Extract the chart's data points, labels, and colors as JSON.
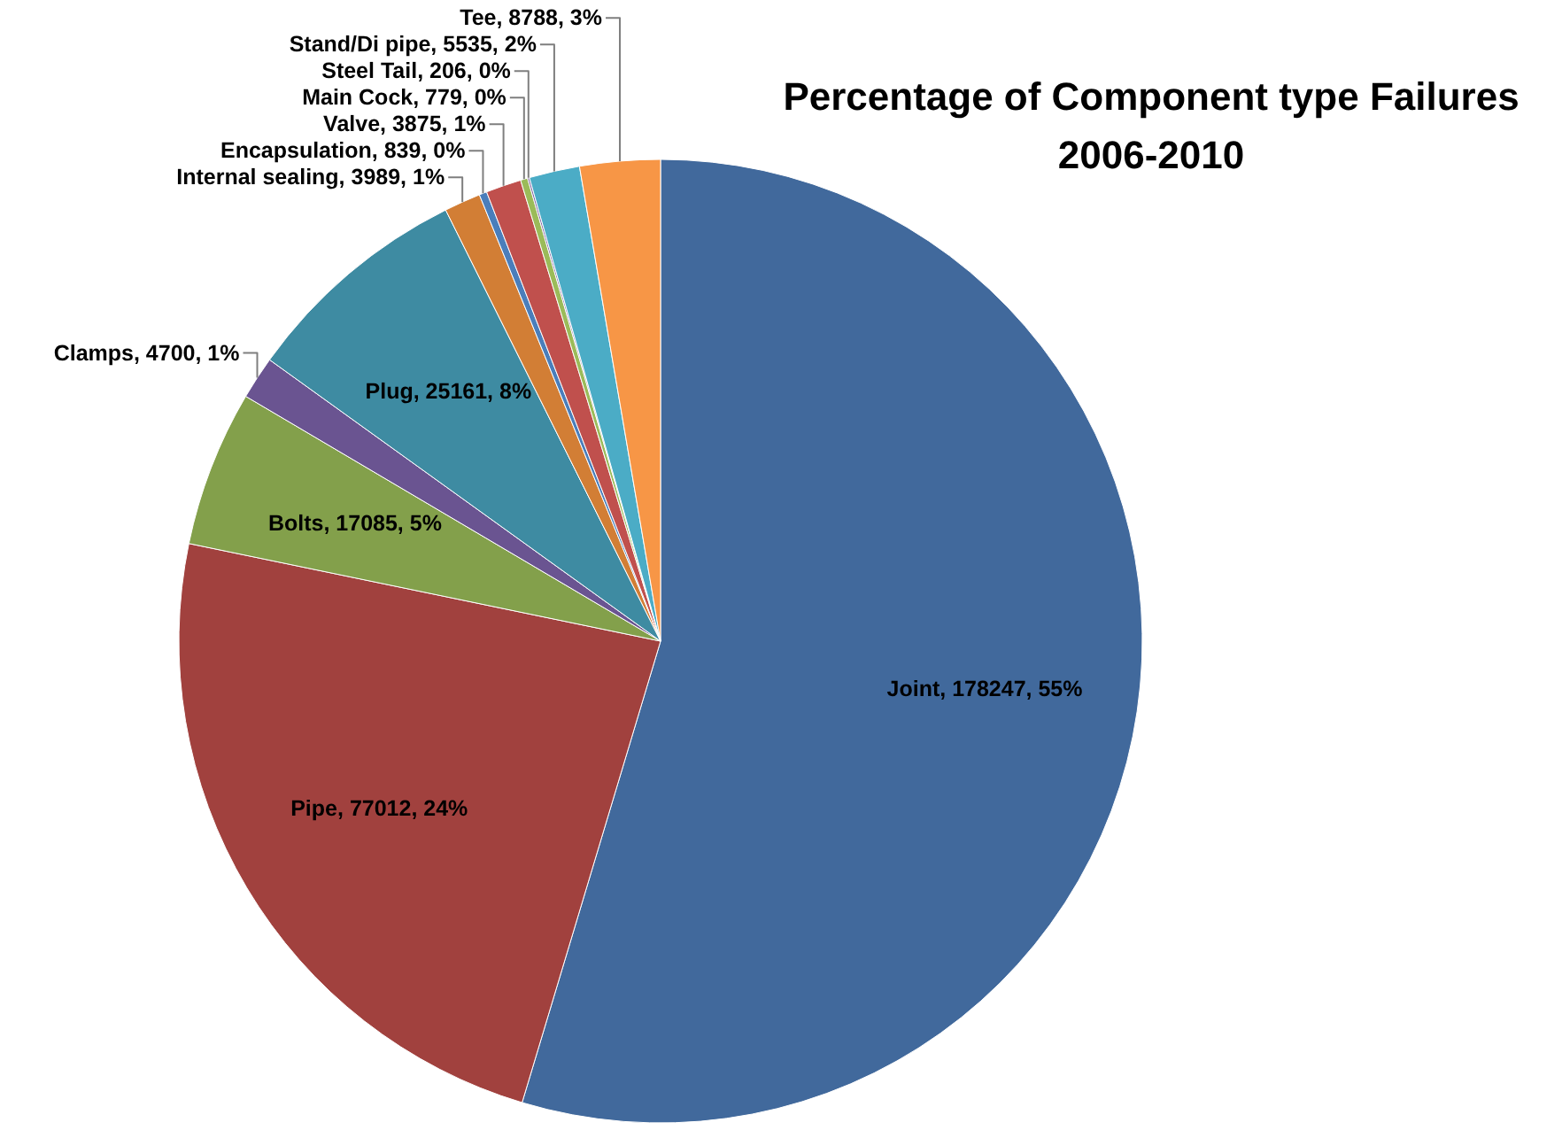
{
  "chart_data": {
    "type": "pie",
    "title": "Percentage of Component type Failures",
    "subtitle": "2006-2010",
    "categories": [
      "Joint",
      "Pipe",
      "Bolts",
      "Clamps",
      "Plug",
      "Internal sealing",
      "Encapsulation",
      "Valve",
      "Main Cock",
      "Steel Tail",
      "Stand/Di pipe",
      "Tee"
    ],
    "values": [
      178247,
      77012,
      17085,
      4700,
      25161,
      3989,
      839,
      3875,
      779,
      206,
      5535,
      8788
    ],
    "value_labels": [
      "178247, 55%",
      "77012, 24%",
      "17085, 5%",
      "4700, 1%",
      "25161, 8%",
      "3989, 1%",
      "839, 0%",
      "3875, 1%",
      "779, 0%",
      "206, 0%",
      "5535, 2%",
      "8788, 3%"
    ],
    "colors": [
      "#41699c",
      "#a1413e",
      "#83a04b",
      "#6a5491",
      "#3e8ba2",
      "#d27e35",
      "#4a7ebb",
      "#c0504d",
      "#9bbb59",
      "#8064a2",
      "#4bacc6",
      "#f79646"
    ]
  }
}
